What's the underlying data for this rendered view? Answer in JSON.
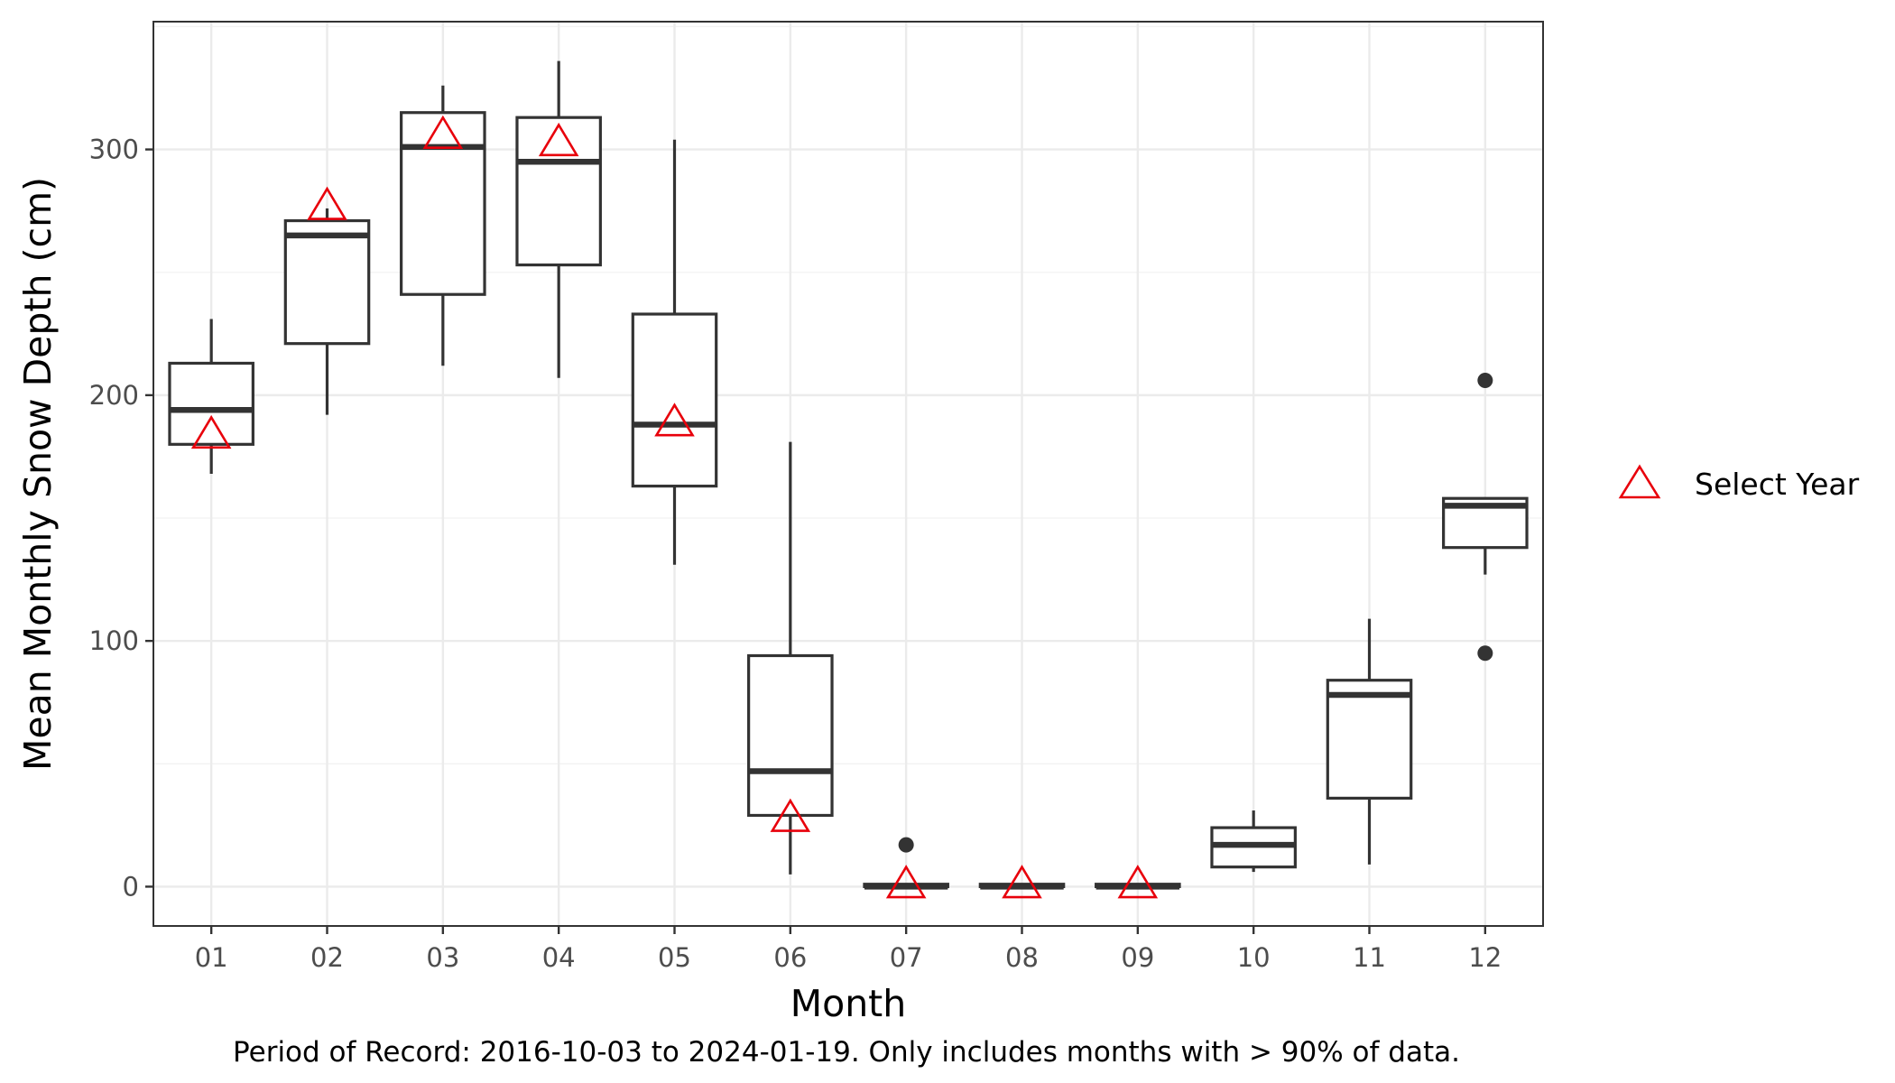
{
  "chart_data": {
    "type": "boxplot",
    "xlabel": "Month",
    "ylabel": "Mean Monthly Snow Depth (cm)",
    "caption": "Period of Record: 2016-10-03 to 2024-01-19. Only includes months with > 90% of data.",
    "ylim": [
      -16,
      352
    ],
    "yticks": [
      0,
      100,
      200,
      300
    ],
    "grid": true,
    "legend": {
      "position": "right",
      "entries": [
        {
          "label": "Select Year",
          "marker": "open-triangle",
          "color": "#e8000b"
        }
      ]
    },
    "colors": {
      "box": "#333333",
      "marker": "#e8000b",
      "grid_major": "#ebebeb",
      "grid_minor": "#f2f2f2"
    },
    "categories": [
      "01",
      "02",
      "03",
      "04",
      "05",
      "06",
      "07",
      "08",
      "09",
      "10",
      "11",
      "12"
    ],
    "boxes": [
      {
        "month": "01",
        "whisker_low": 168,
        "q1": 180,
        "median": 194,
        "q3": 213,
        "whisker_high": 231,
        "outliers": []
      },
      {
        "month": "02",
        "whisker_low": 192,
        "q1": 221,
        "median": 265,
        "q3": 271,
        "whisker_high": 276,
        "outliers": []
      },
      {
        "month": "03",
        "whisker_low": 212,
        "q1": 241,
        "median": 301,
        "q3": 315,
        "whisker_high": 326,
        "outliers": []
      },
      {
        "month": "04",
        "whisker_low": 207,
        "q1": 253,
        "median": 295,
        "q3": 313,
        "whisker_high": 336,
        "outliers": []
      },
      {
        "month": "05",
        "whisker_low": 131,
        "q1": 163,
        "median": 188,
        "q3": 233,
        "whisker_high": 304,
        "outliers": []
      },
      {
        "month": "06",
        "whisker_low": 5,
        "q1": 29,
        "median": 47,
        "q3": 94,
        "whisker_high": 181,
        "outliers": []
      },
      {
        "month": "07",
        "whisker_low": 0,
        "q1": 0,
        "median": 0,
        "q3": 1,
        "whisker_high": 1,
        "outliers": [
          17
        ]
      },
      {
        "month": "08",
        "whisker_low": 0,
        "q1": 0,
        "median": 0,
        "q3": 1,
        "whisker_high": 1,
        "outliers": []
      },
      {
        "month": "09",
        "whisker_low": 0,
        "q1": 0,
        "median": 0,
        "q3": 1,
        "whisker_high": 1,
        "outliers": []
      },
      {
        "month": "10",
        "whisker_low": 6,
        "q1": 8,
        "median": 17,
        "q3": 24,
        "whisker_high": 31,
        "outliers": []
      },
      {
        "month": "11",
        "whisker_low": 9,
        "q1": 36,
        "median": 78,
        "q3": 84,
        "whisker_high": 109,
        "outliers": []
      },
      {
        "month": "12",
        "whisker_low": 127,
        "q1": 138,
        "median": 155,
        "q3": 158,
        "whisker_high": 158,
        "outliers": [
          206,
          95
        ]
      }
    ],
    "select_year": [
      {
        "month": "01",
        "value": 184
      },
      {
        "month": "02",
        "value": 277
      },
      {
        "month": "03",
        "value": 306
      },
      {
        "month": "04",
        "value": 303
      },
      {
        "month": "05",
        "value": 189
      },
      {
        "month": "06",
        "value": 28
      },
      {
        "month": "07",
        "value": 1
      },
      {
        "month": "08",
        "value": 1
      },
      {
        "month": "09",
        "value": 1
      }
    ]
  }
}
